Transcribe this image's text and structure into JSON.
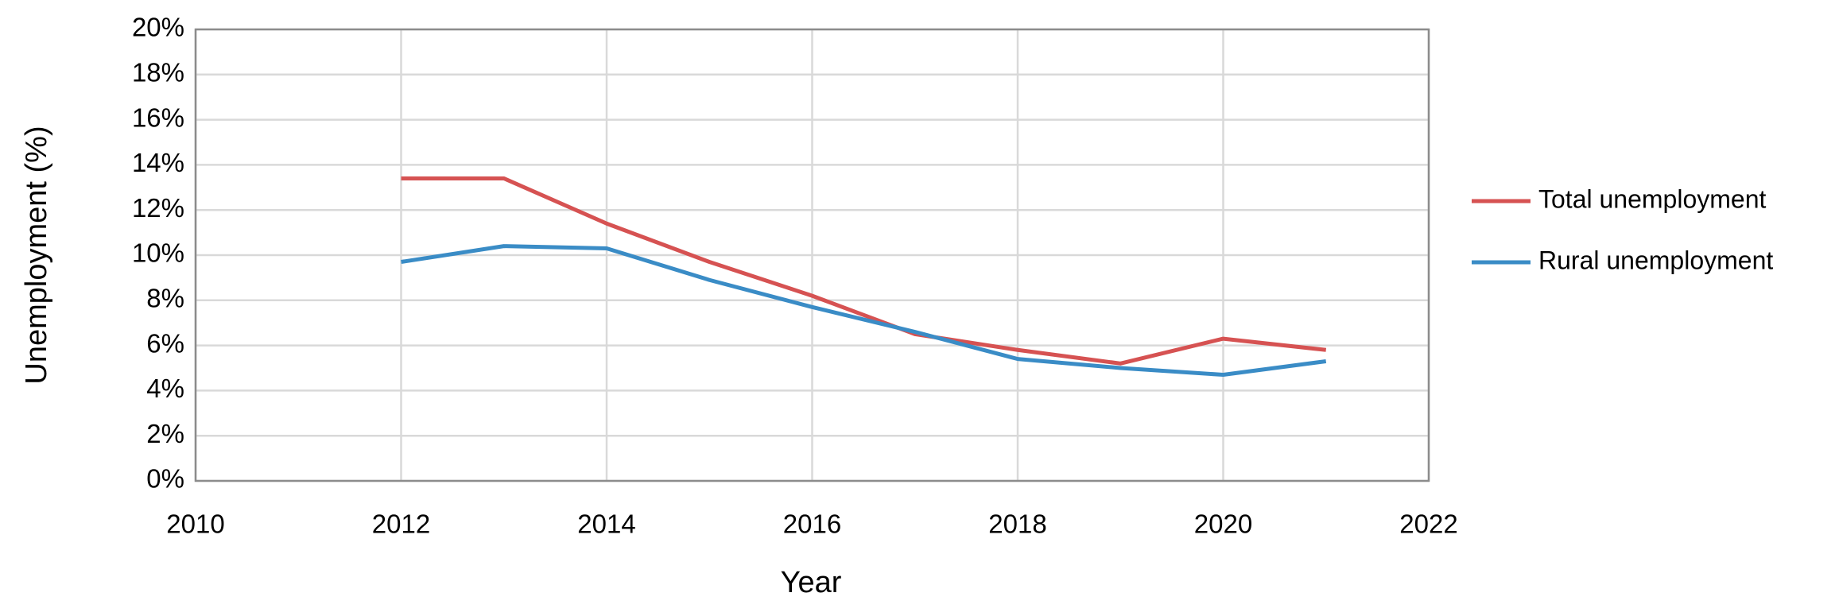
{
  "chart_data": {
    "type": "line",
    "x": [
      2012,
      2013,
      2014,
      2015,
      2016,
      2017,
      2018,
      2019,
      2020,
      2021
    ],
    "series": [
      {
        "name": "Total unemployment",
        "color": "#d65252",
        "values": [
          13.4,
          13.4,
          11.4,
          9.7,
          8.2,
          6.5,
          5.8,
          5.2,
          6.3,
          5.8
        ]
      },
      {
        "name": "Rural unemployment",
        "color": "#3a8cc6",
        "values": [
          9.7,
          10.4,
          10.3,
          8.9,
          7.7,
          6.6,
          5.4,
          5.0,
          4.7,
          5.3
        ]
      }
    ],
    "xlabel": "Year",
    "ylabel": "Unemployment (%)",
    "xlim": [
      2010,
      2022
    ],
    "xticks": [
      2010,
      2012,
      2014,
      2016,
      2018,
      2020,
      2022
    ],
    "ylim": [
      0,
      20
    ],
    "yticks": [
      {
        "value": 0,
        "label": "0%"
      },
      {
        "value": 2,
        "label": "2%"
      },
      {
        "value": 4,
        "label": "4%"
      },
      {
        "value": 6,
        "label": "6%"
      },
      {
        "value": 8,
        "label": "8%"
      },
      {
        "value": 10,
        "label": "10%"
      },
      {
        "value": 12,
        "label": "12%"
      },
      {
        "value": 14,
        "label": "14%"
      },
      {
        "value": 16,
        "label": "16%"
      },
      {
        "value": 18,
        "label": "18%"
      },
      {
        "value": 20,
        "label": "20%"
      }
    ],
    "grid": true,
    "legend": "right"
  }
}
